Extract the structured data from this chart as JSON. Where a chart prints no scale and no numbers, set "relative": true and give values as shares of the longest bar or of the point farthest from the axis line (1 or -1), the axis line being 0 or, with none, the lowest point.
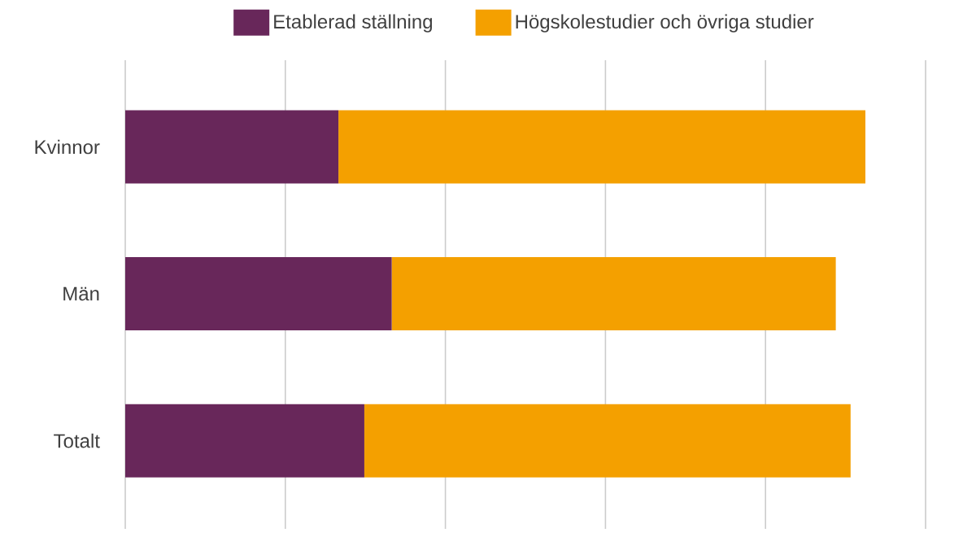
{
  "chart_data": {
    "type": "bar",
    "orientation": "horizontal",
    "stacked": true,
    "relative": true,
    "grid": "x",
    "legend": "top",
    "categories": [
      "Kvinnor",
      "Män",
      "Totalt"
    ],
    "series": [
      {
        "name": "Etablerad ställning",
        "color": "#68275a",
        "values": [
          0.288,
          0.36,
          0.323
        ]
      },
      {
        "name": "Högskolestudier och övriga studier",
        "color": "#f4a000",
        "values": [
          0.712,
          0.6,
          0.657
        ]
      }
    ]
  }
}
